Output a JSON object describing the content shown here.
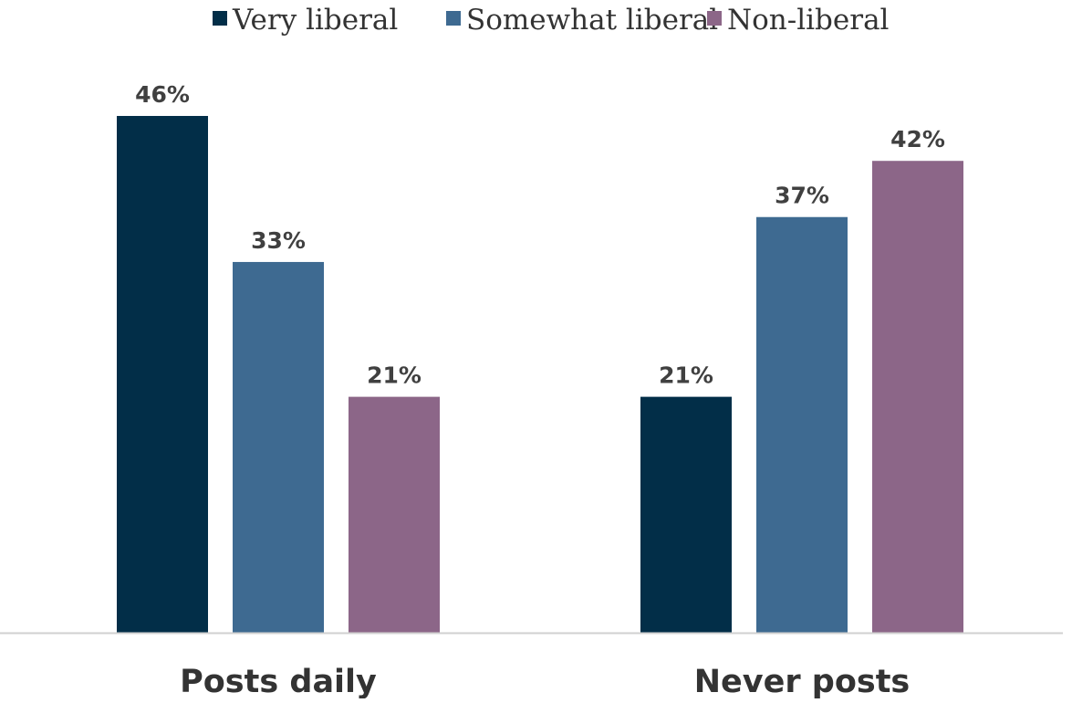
{
  "chart_data": {
    "type": "bar",
    "categories": [
      "Posts daily",
      "Never posts"
    ],
    "series": [
      {
        "name": "Very liberal",
        "values": [
          46,
          21
        ],
        "labels": [
          "46%",
          "21%"
        ],
        "color": "#022e48"
      },
      {
        "name": "Somewhat liberal",
        "values": [
          33,
          37
        ],
        "labels": [
          "33%",
          "37%"
        ],
        "color": "#3e6a91"
      },
      {
        "name": "Non-liberal",
        "values": [
          21,
          42
        ],
        "labels": [
          "21%",
          "42%"
        ],
        "color": "#8c6688"
      }
    ],
    "unit": "%",
    "ylim": [
      0,
      46
    ],
    "grid": false,
    "legend_position": "top",
    "axis_color": "#d0d0d0"
  }
}
